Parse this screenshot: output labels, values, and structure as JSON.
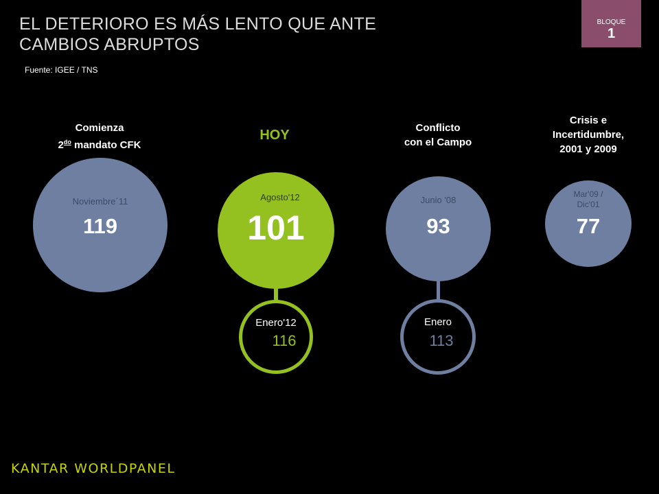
{
  "header": {
    "title_line1": "EL DETERIORO ES MÁS LENTO QUE ANTE",
    "title_line2": "CAMBIOS ABRUPTOS",
    "source": "Fuente: IGEE / TNS"
  },
  "bloque": {
    "label": "BLOQUE",
    "number": "1"
  },
  "colors": {
    "accent_green": "#94c11f",
    "circle_blue": "#6e7fa1",
    "bloque_bg": "#8a4e6c"
  },
  "items": [
    {
      "caption_pre": "Comienza",
      "caption_num": "2",
      "caption_sup": "do",
      "caption_post": " mandato CFK",
      "period": "Noviembre´11",
      "value": "119"
    },
    {
      "caption": "HOY",
      "period": "Agosto'12",
      "value": "101",
      "previous_period": "Enero'12",
      "previous_value": "116"
    },
    {
      "caption_line1": "Conflicto",
      "caption_line2": "con el Campo",
      "period": "Junio '08",
      "value": "93",
      "previous_period": "Enero",
      "previous_value": "113"
    },
    {
      "caption_line1": "Crisis e",
      "caption_line2": "Incertidumbre,",
      "caption_line3": "2001 y 2009",
      "period_line1": "Mar'09 /",
      "period_line2": "Dic'01",
      "value": "77"
    }
  ],
  "footer": {
    "logo_text": "KANTAR WORLDPANEL"
  }
}
